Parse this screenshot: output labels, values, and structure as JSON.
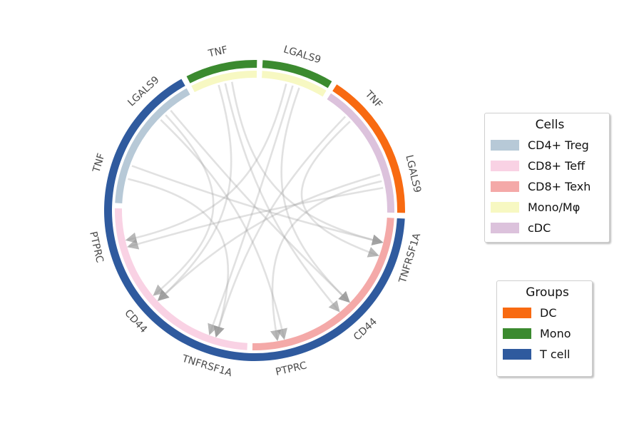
{
  "segments": [
    {
      "gene": "LGALS9",
      "cell": "Mono/Mφ",
      "group": "Mono"
    },
    {
      "gene": "TNF",
      "cell": "cDC",
      "group": "DC"
    },
    {
      "gene": "LGALS9",
      "cell": "cDC",
      "group": "DC"
    },
    {
      "gene": "TNFRSF1A",
      "cell": "CD8+ Texh",
      "group": "T cell"
    },
    {
      "gene": "CD44",
      "cell": "CD8+ Texh",
      "group": "T cell"
    },
    {
      "gene": "PTPRC",
      "cell": "CD8+ Texh",
      "group": "T cell"
    },
    {
      "gene": "TNFRSF1A",
      "cell": "CD8+ Teff",
      "group": "T cell"
    },
    {
      "gene": "CD44",
      "cell": "CD8+ Teff",
      "group": "T cell"
    },
    {
      "gene": "PTPRC",
      "cell": "CD8+ Teff",
      "group": "T cell"
    },
    {
      "gene": "TNF",
      "cell": "CD4+ Treg",
      "group": "T cell"
    },
    {
      "gene": "LGALS9",
      "cell": "CD4+ Treg",
      "group": "T cell"
    },
    {
      "gene": "TNF",
      "cell": "Mono/Mφ",
      "group": "Mono"
    }
  ],
  "links": [
    {
      "from": 0,
      "to": 8
    },
    {
      "from": 0,
      "to": 6
    },
    {
      "from": 0,
      "to": 4
    },
    {
      "from": 1,
      "to": 6
    },
    {
      "from": 1,
      "to": 3
    },
    {
      "from": 2,
      "to": 8
    },
    {
      "from": 2,
      "to": 7
    },
    {
      "from": 2,
      "to": 5
    },
    {
      "from": 9,
      "to": 3
    },
    {
      "from": 9,
      "to": 6
    },
    {
      "from": 10,
      "to": 7
    },
    {
      "from": 10,
      "to": 4
    },
    {
      "from": 10,
      "to": 5
    },
    {
      "from": 11,
      "to": 4
    },
    {
      "from": 11,
      "to": 3
    },
    {
      "from": 11,
      "to": 7
    }
  ],
  "legends": {
    "cells": {
      "title": "Cells",
      "items": [
        {
          "label": "CD4+ Treg",
          "color": "#b7c9d7"
        },
        {
          "label": "CD8+ Teff",
          "color": "#f9d2e4"
        },
        {
          "label": "CD8+ Texh",
          "color": "#f4a9a8"
        },
        {
          "label": "Mono/Mφ",
          "color": "#f7f8c2"
        },
        {
          "label": "cDC",
          "color": "#dcc2dc"
        }
      ]
    },
    "groups": {
      "title": "Groups",
      "items": [
        {
          "label": "DC",
          "color": "#f86a11"
        },
        {
          "label": "Mono",
          "color": "#3b8a2f"
        },
        {
          "label": "T cell",
          "color": "#2f5a9e"
        }
      ]
    }
  },
  "colors": {
    "link": "#9a9a9a",
    "gene_label": "#4a4a4a"
  }
}
